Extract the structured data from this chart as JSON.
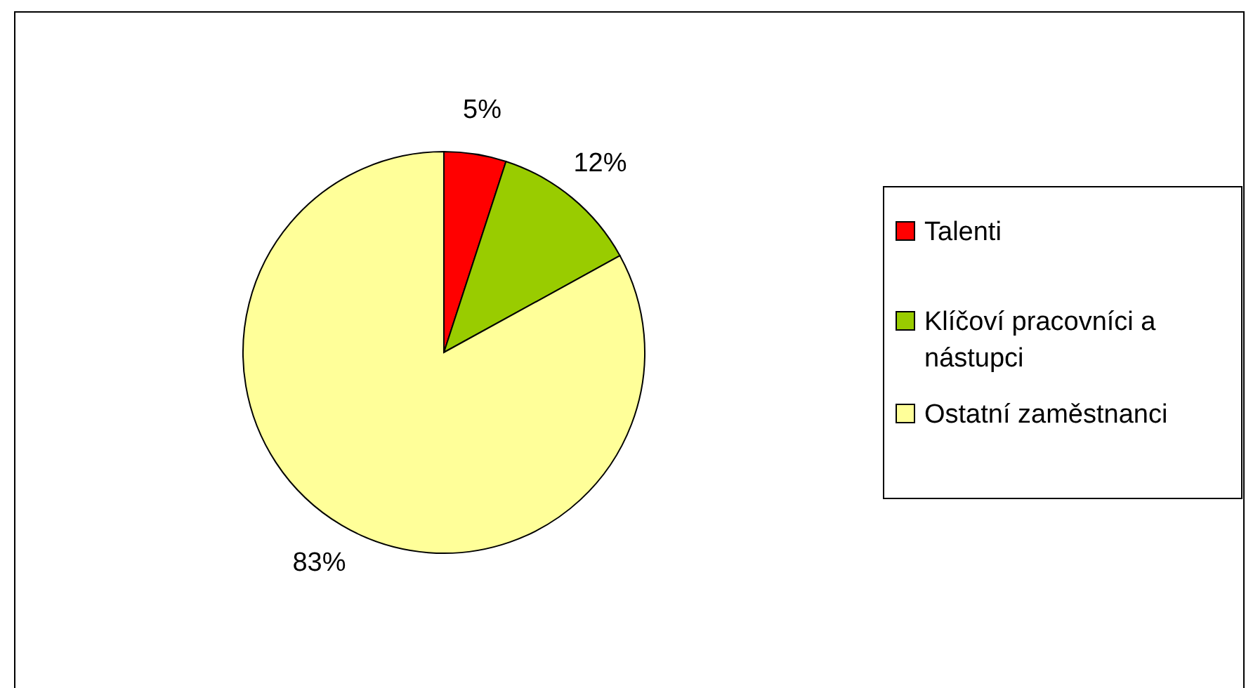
{
  "chart_data": {
    "type": "pie",
    "categories": [
      "Talenti",
      "Klíčoví pracovníci a nástupci",
      "Ostatní zaměstnanci"
    ],
    "values": [
      5,
      12,
      83
    ],
    "colors": [
      "#ff0000",
      "#99cc00",
      "#ffff99"
    ],
    "value_labels": [
      "5%",
      "12%",
      "83%"
    ],
    "legend": "right"
  }
}
